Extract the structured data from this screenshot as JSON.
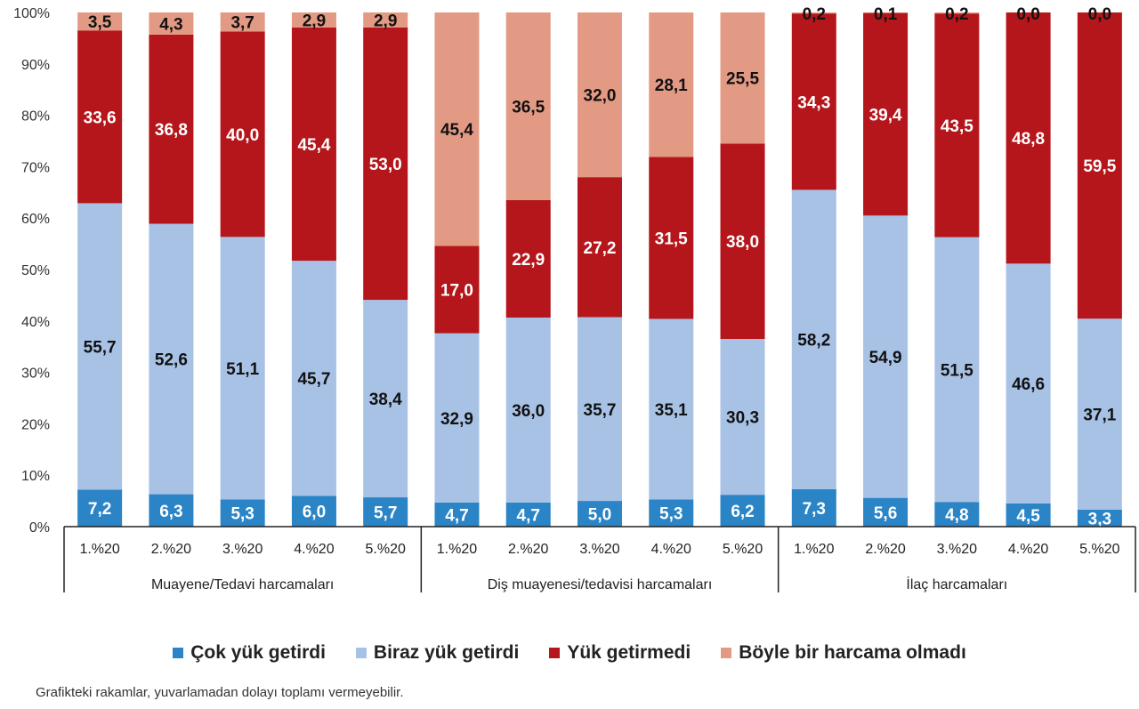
{
  "chart_data": {
    "type": "bar",
    "stacked": true,
    "percent_stacked": true,
    "ylim": [
      0,
      100
    ],
    "y_ticks": [
      "0%",
      "10%",
      "20%",
      "30%",
      "40%",
      "50%",
      "60%",
      "70%",
      "80%",
      "90%",
      "100%"
    ],
    "grid": false,
    "legend_position": "bottom",
    "groups": [
      {
        "label": "Muayene/Tedavi harcamaları",
        "categories": [
          "1.%20",
          "2.%20",
          "3.%20",
          "4.%20",
          "5.%20"
        ]
      },
      {
        "label": "Diş muayenesi/tedavisi harcamaları",
        "categories": [
          "1.%20",
          "2.%20",
          "3.%20",
          "4.%20",
          "5.%20"
        ]
      },
      {
        "label": "İlaç harcamaları",
        "categories": [
          "1.%20",
          "2.%20",
          "3.%20",
          "4.%20",
          "5.%20"
        ]
      }
    ],
    "series": [
      {
        "name": "Çok yük getirdi",
        "color": "#2a84c6",
        "label_color": "#ffffff",
        "values": [
          7.2,
          6.3,
          5.3,
          6.0,
          5.7,
          4.7,
          4.7,
          5.0,
          5.3,
          6.2,
          7.3,
          5.6,
          4.8,
          4.5,
          3.3
        ],
        "labels": [
          "7,2",
          "6,3",
          "5,3",
          "6,0",
          "5,7",
          "4,7",
          "4,7",
          "5,0",
          "5,3",
          "6,2",
          "7,3",
          "5,6",
          "4,8",
          "4,5",
          "3,3"
        ]
      },
      {
        "name": "Biraz yük getirdi",
        "color": "#a8c2e6",
        "label_color": "#111111",
        "values": [
          55.7,
          52.6,
          51.1,
          45.7,
          38.4,
          32.9,
          36.0,
          35.7,
          35.1,
          30.3,
          58.2,
          54.9,
          51.5,
          46.6,
          37.1
        ],
        "labels": [
          "55,7",
          "52,6",
          "51,1",
          "45,7",
          "38,4",
          "32,9",
          "36,0",
          "35,7",
          "35,1",
          "30,3",
          "58,2",
          "54,9",
          "51,5",
          "46,6",
          "37,1"
        ]
      },
      {
        "name": "Yük getirmedi",
        "color": "#b5161b",
        "label_color": "#ffffff",
        "values": [
          33.6,
          36.8,
          40.0,
          45.4,
          53.0,
          17.0,
          22.9,
          27.2,
          31.5,
          38.0,
          34.3,
          39.4,
          43.5,
          48.8,
          59.5
        ],
        "labels": [
          "33,6",
          "36,8",
          "40,0",
          "45,4",
          "53,0",
          "17,0",
          "22,9",
          "27,2",
          "31,5",
          "38,0",
          "34,3",
          "39,4",
          "43,5",
          "48,8",
          "59,5"
        ]
      },
      {
        "name": "Böyle bir harcama olmadı",
        "color": "#e39a84",
        "label_color": "#111111",
        "values": [
          3.5,
          4.3,
          3.7,
          2.9,
          2.9,
          45.4,
          36.5,
          32.0,
          28.1,
          25.5,
          0.2,
          0.1,
          0.2,
          0.0,
          0.0
        ],
        "labels": [
          "3,5",
          "4,3",
          "3,7",
          "2,9",
          "2,9",
          "45,4",
          "36,5",
          "32,0",
          "28,1",
          "25,5",
          "0,2",
          "0,1",
          "0,2",
          "0,0",
          "0,0"
        ]
      }
    ]
  },
  "note": "Grafikteki rakamlar, yuvarlamadan dolayı toplamı vermeyebilir."
}
